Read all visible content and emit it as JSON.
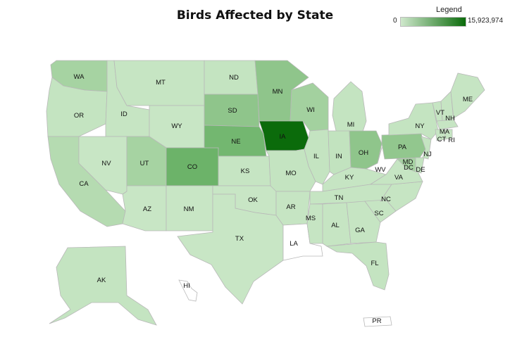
{
  "title": "Birds Affected by State",
  "legend": {
    "title": "Legend",
    "min": "0",
    "max": "15,923,974",
    "color_low": "#cfe8cc",
    "color_high": "#0b6b0b"
  },
  "states": {
    "WA": {
      "label": "WA",
      "color": "#a6d3a2"
    },
    "OR": {
      "label": "OR",
      "color": "#c4e4c1"
    },
    "CA": {
      "label": "CA",
      "color": "#b5dbb1"
    },
    "ID": {
      "label": "ID",
      "color": "#c6e5c3"
    },
    "NV": {
      "label": "NV",
      "color": "#c8e6c5"
    },
    "MT": {
      "label": "MT",
      "color": "#c6e5c3"
    },
    "WY": {
      "label": "WY",
      "color": "#c8e6c5"
    },
    "UT": {
      "label": "UT",
      "color": "#a6d3a2"
    },
    "AZ": {
      "label": "AZ",
      "color": "#c8e6c5"
    },
    "CO": {
      "label": "CO",
      "color": "#6cb369"
    },
    "NM": {
      "label": "NM",
      "color": "#c8e6c5"
    },
    "ND": {
      "label": "ND",
      "color": "#c4e4c1"
    },
    "SD": {
      "label": "SD",
      "color": "#8fc58b"
    },
    "NE": {
      "label": "NE",
      "color": "#73b770"
    },
    "KS": {
      "label": "KS",
      "color": "#c6e5c3"
    },
    "OK": {
      "label": "OK",
      "color": "#c8e6c5"
    },
    "TX": {
      "label": "TX",
      "color": "#c8e6c5"
    },
    "MN": {
      "label": "MN",
      "color": "#8fc58b"
    },
    "IA": {
      "label": "IA",
      "color": "#0b6b0b"
    },
    "MO": {
      "label": "MO",
      "color": "#c4e4c1"
    },
    "AR": {
      "label": "AR",
      "color": "#c6e5c3"
    },
    "LA": {
      "label": "LA",
      "color": "#ffffff"
    },
    "WI": {
      "label": "WI",
      "color": "#a3d19f"
    },
    "IL": {
      "label": "IL",
      "color": "#c4e4c1"
    },
    "MI": {
      "label": "MI",
      "color": "#c4e4c1"
    },
    "IN": {
      "label": "IN",
      "color": "#c2e3bf"
    },
    "OH": {
      "label": "OH",
      "color": "#8fc58b"
    },
    "KY": {
      "label": "KY",
      "color": "#c6e5c3"
    },
    "TN": {
      "label": "TN",
      "color": "#c6e5c3"
    },
    "MS": {
      "label": "MS",
      "color": "#c6e5c3"
    },
    "AL": {
      "label": "AL",
      "color": "#c6e5c3"
    },
    "GA": {
      "label": "GA",
      "color": "#c6e5c3"
    },
    "FL": {
      "label": "FL",
      "color": "#c4e4c1"
    },
    "SC": {
      "label": "SC",
      "color": "#c6e5c3"
    },
    "NC": {
      "label": "NC",
      "color": "#c6e5c3"
    },
    "VA": {
      "label": "VA",
      "color": "#c6e5c3"
    },
    "WV": {
      "label": "WV",
      "color": "#ffffff"
    },
    "PA": {
      "label": "PA",
      "color": "#92c78e"
    },
    "NY": {
      "label": "NY",
      "color": "#c4e4c1"
    },
    "VT": {
      "label": "VT",
      "color": "#c6e5c3"
    },
    "NH": {
      "label": "NH",
      "color": "#c6e5c3"
    },
    "ME": {
      "label": "ME",
      "color": "#c6e5c3"
    },
    "MA": {
      "label": "MA",
      "color": "#c6e5c3"
    },
    "CT": {
      "label": "CT",
      "color": "#c6e5c3"
    },
    "RI": {
      "label": "RI",
      "color": "#c6e5c3"
    },
    "NJ": {
      "label": "NJ",
      "color": "#c4e4c1"
    },
    "DE": {
      "label": "DE",
      "color": "#c4e4c1"
    },
    "MD": {
      "label": "MD",
      "color": "#a6d3a2"
    },
    "DC": {
      "label": "DC",
      "color": "#c6e5c3"
    },
    "AK": {
      "label": "AK",
      "color": "#c4e4c1"
    },
    "HI": {
      "label": "HI",
      "color": "#ffffff"
    },
    "PR": {
      "label": "PR",
      "color": "#ffffff"
    }
  }
}
